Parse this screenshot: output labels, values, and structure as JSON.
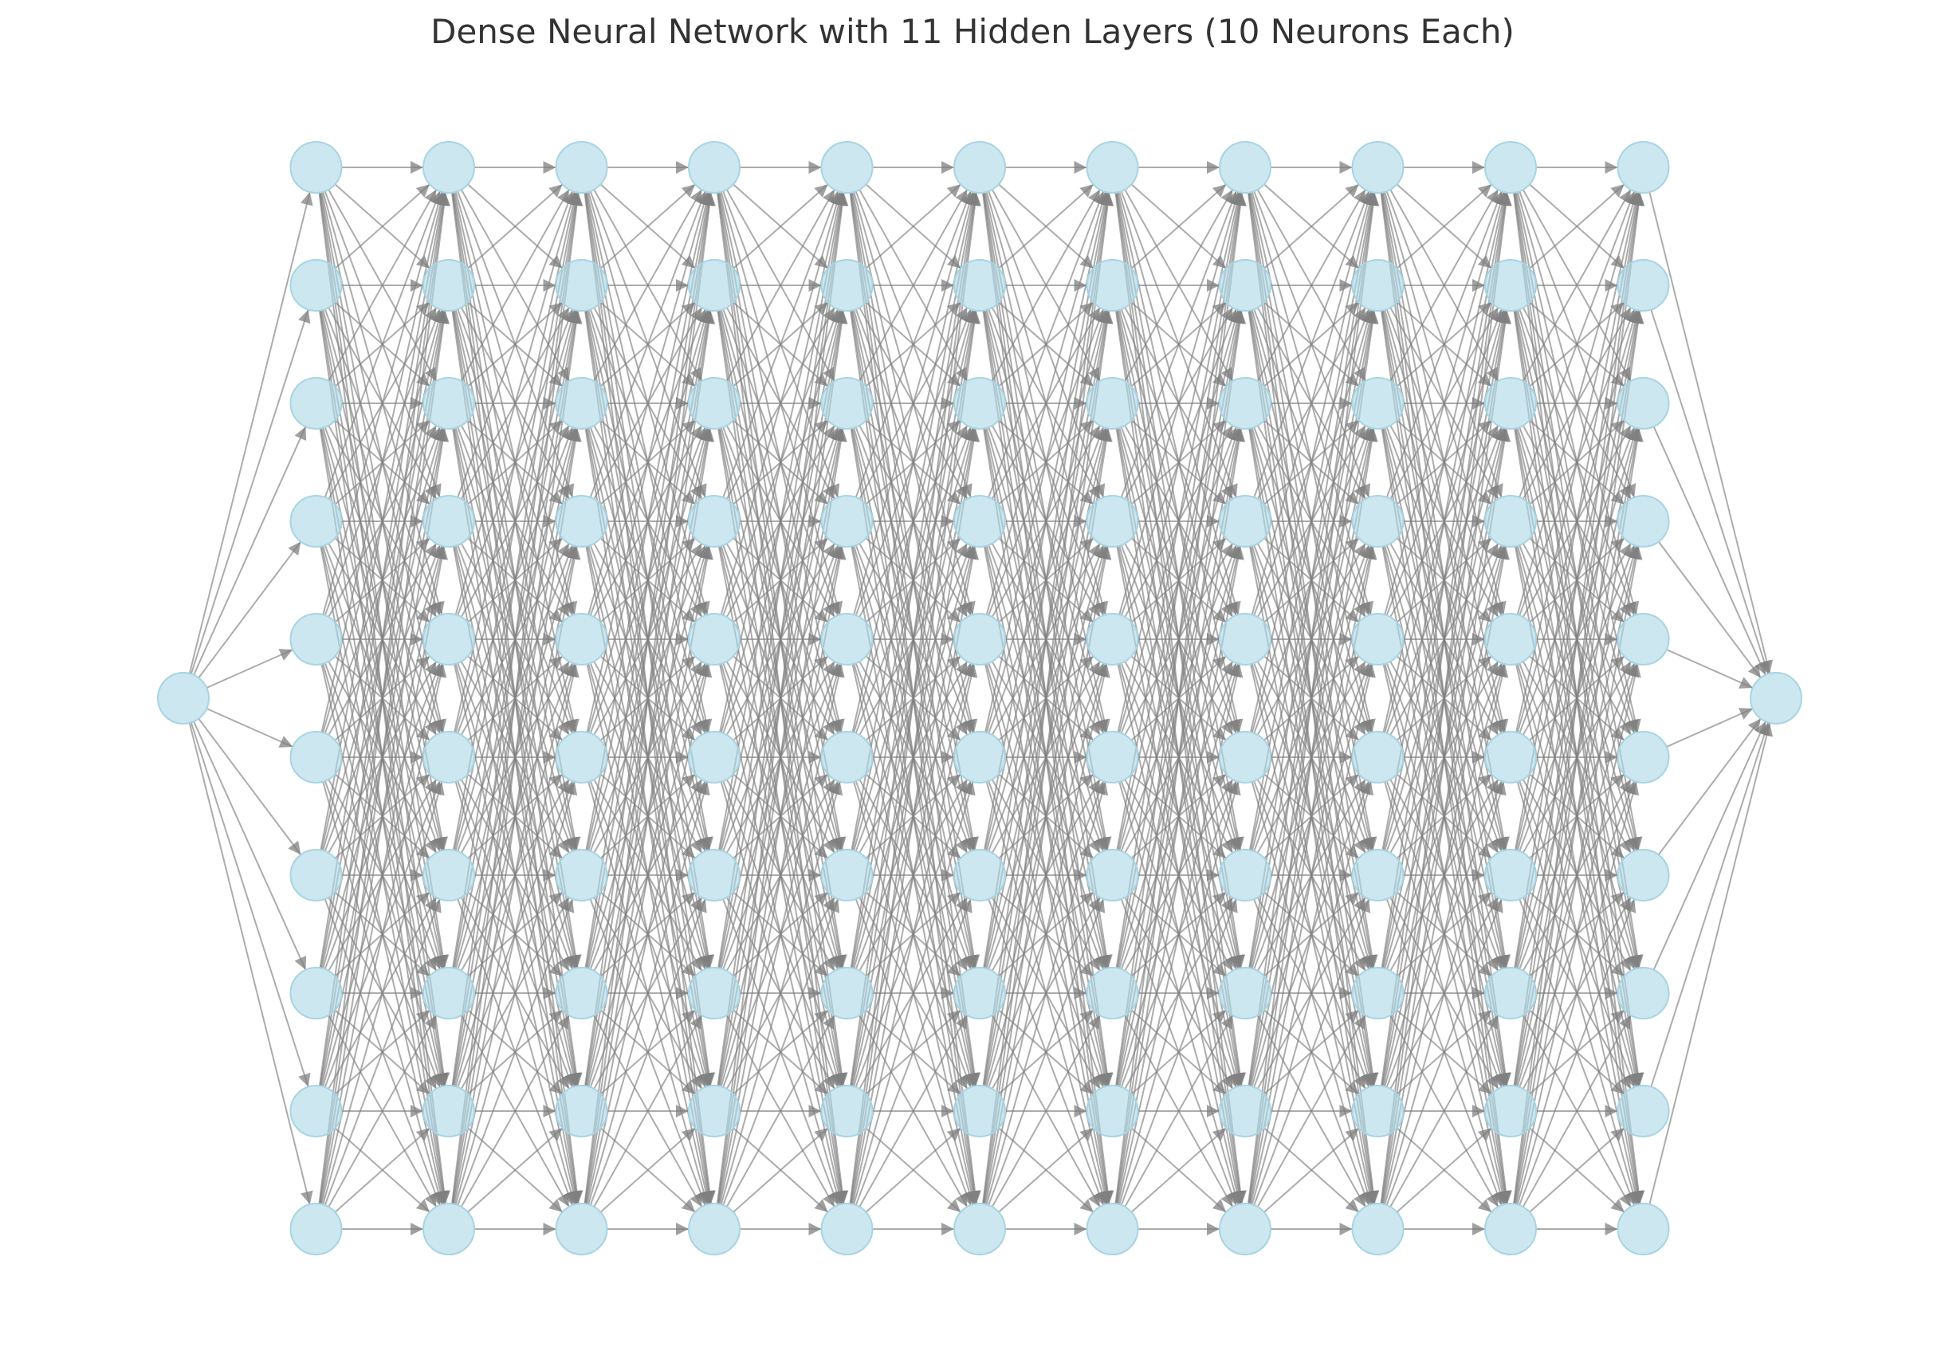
{
  "title": "Dense Neural Network with 11 Hidden Layers (10 Neurons Each)",
  "network": {
    "input_neurons": 1,
    "hidden_layers": 11,
    "neurons_per_hidden_layer": 10,
    "output_neurons": 1
  },
  "colors": {
    "node_fill": "#add8e6",
    "node_stroke": "#a8d4e2",
    "edge": "#808080",
    "title": "#333333"
  }
}
